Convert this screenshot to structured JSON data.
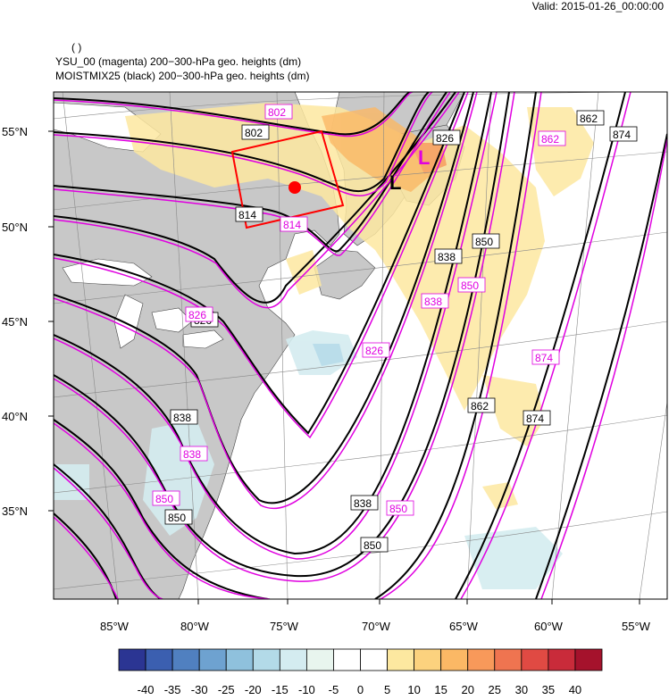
{
  "header": {
    "valid": "Valid: 2015-01-26_00:00:00",
    "paren": "( )",
    "line1": "YSU_00 (magenta) 200−300-hPa geo. heights   (dm)",
    "line2": "MOISTMIX25 (black) 200−300-hPa geo. heights   (dm)"
  },
  "lat_labels": [
    "55°N",
    "50°N",
    "45°N",
    "40°N",
    "35°N"
  ],
  "lon_labels": [
    "85°W",
    "80°W",
    "75°W",
    "70°W",
    "65°W",
    "60°W",
    "55°W"
  ],
  "contour_labels_black": [
    "802",
    "814",
    "826",
    "826",
    "838",
    "838",
    "850",
    "850",
    "850",
    "838",
    "862",
    "862",
    "874",
    "874"
  ],
  "contour_labels_magenta": [
    "802",
    "814",
    "826",
    "826",
    "838",
    "838",
    "850",
    "850",
    "850",
    "862",
    "874"
  ],
  "low_markers": {
    "black": "L",
    "magenta": "L"
  },
  "colorbar": {
    "labels": [
      "-40",
      "-35",
      "-30",
      "-25",
      "-20",
      "-15",
      "-10",
      "-5",
      "0",
      "5",
      "10",
      "15",
      "20",
      "25",
      "30",
      "35",
      "40"
    ],
    "colors": [
      "#2b3593",
      "#3b5fb0",
      "#5080c0",
      "#6ea2d0",
      "#8fc1dd",
      "#b3dae8",
      "#d4ecf0",
      "#e8f5ee",
      "#ffffff",
      "#ffffff",
      "#fde8a0",
      "#fcd27e",
      "#fbb865",
      "#f8995a",
      "#ef7450",
      "#e04a43",
      "#c92b3a",
      "#a5122c"
    ]
  },
  "colors": {
    "land": "#c8c8c8",
    "water": "#ffffff",
    "black_contour": "#000000",
    "magenta_contour": "#e000e0",
    "box": "#ff0000",
    "dot": "#ff0000"
  }
}
